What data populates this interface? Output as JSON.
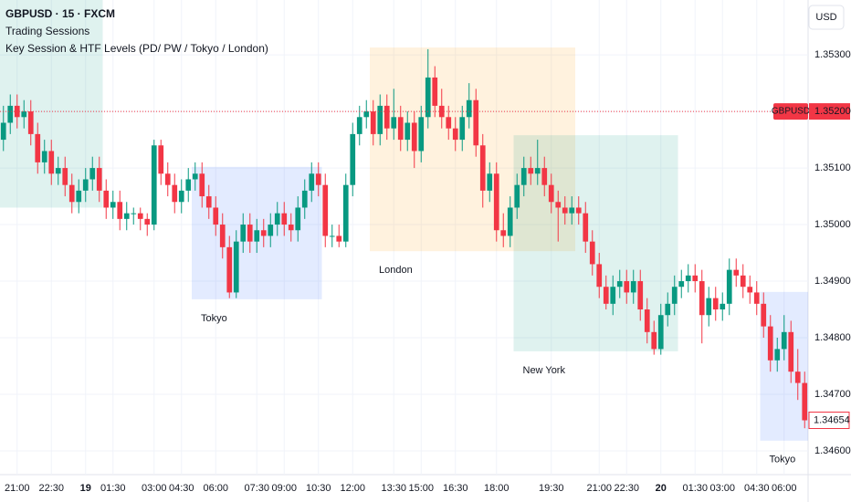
{
  "header": {
    "symbol": "GBPUSD · 15 · FXCM",
    "indicator": "Trading Sessions",
    "indicator2": "Key Session & HTF Levels (PD/ PW / Tokyo / London)",
    "currency": "USD"
  },
  "chart_data": {
    "type": "candlestick",
    "up_color": "#089981",
    "down_color": "#f23645",
    "grid": true,
    "ylim": [
      1.34558,
      1.35397
    ],
    "xlim": [
      -0.5,
      117.5
    ],
    "yticks": [
      {
        "value": 1.353,
        "label": "1.35300"
      },
      {
        "value": 1.352,
        "label": "1.35200"
      },
      {
        "value": 1.351,
        "label": "1.35100"
      },
      {
        "value": 1.35,
        "label": "1.35000"
      },
      {
        "value": 1.349,
        "label": "1.34900"
      },
      {
        "value": 1.348,
        "label": "1.34800"
      },
      {
        "value": 1.347,
        "label": "1.34700"
      },
      {
        "value": 1.346,
        "label": "1.34600"
      }
    ],
    "xticks": [
      {
        "value": 2,
        "label": "21:00"
      },
      {
        "value": 7,
        "label": "22:30"
      },
      {
        "value": 12,
        "label": "19",
        "bold": true
      },
      {
        "value": 16,
        "label": "01:30"
      },
      {
        "value": 22,
        "label": "03:00"
      },
      {
        "value": 26,
        "label": "04:30"
      },
      {
        "value": 31,
        "label": "06:00"
      },
      {
        "value": 37,
        "label": "07:30"
      },
      {
        "value": 41,
        "label": "09:00"
      },
      {
        "value": 46,
        "label": "10:30"
      },
      {
        "value": 51,
        "label": "12:00"
      },
      {
        "value": 57,
        "label": "13:30"
      },
      {
        "value": 61,
        "label": "15:00"
      },
      {
        "value": 66,
        "label": "16:30"
      },
      {
        "value": 72,
        "label": "18:00"
      },
      {
        "value": 80,
        "label": "19:30"
      },
      {
        "value": 87,
        "label": "21:00"
      },
      {
        "value": 91,
        "label": "22:30"
      },
      {
        "value": 96,
        "label": "20",
        "bold": true
      },
      {
        "value": 101,
        "label": "01:30"
      },
      {
        "value": 105,
        "label": "03:00"
      },
      {
        "value": 110,
        "label": "04:30"
      },
      {
        "value": 114,
        "label": "06:00"
      }
    ],
    "price_line": {
      "name": "GBPUSD",
      "value": 1.352,
      "label": "1.35200",
      "color": "#f23645"
    },
    "last_price": {
      "value": 1.34654,
      "color": "#f23645"
    },
    "sessions": [
      {
        "start": 0,
        "end": 14,
        "high": 1.35397,
        "low": 1.3503,
        "color": "#089981"
      },
      {
        "name": "Tokyo",
        "start": 28,
        "end": 46,
        "high": 1.35102,
        "low": 1.34868,
        "color": "#2962ff"
      },
      {
        "name": "London",
        "start": 54,
        "end": 83,
        "high": 1.35313,
        "low": 1.34953,
        "color": "#ff9800"
      },
      {
        "name": "New York",
        "start": 75,
        "end": 98,
        "high": 1.35158,
        "low": 1.34776,
        "color": "#089981"
      },
      {
        "name": "Tokyo",
        "start": 111,
        "end": 117,
        "high": 1.34881,
        "low": 1.34618,
        "color": "#2962ff"
      }
    ],
    "candles": [
      [
        1.3515,
        1.3521,
        1.3513,
        1.3518
      ],
      [
        1.3518,
        1.3523,
        1.3516,
        1.3521
      ],
      [
        1.3521,
        1.3523,
        1.3517,
        1.3519
      ],
      [
        1.3519,
        1.3522,
        1.3517,
        1.352
      ],
      [
        1.352,
        1.3522,
        1.3514,
        1.3516
      ],
      [
        1.3516,
        1.3518,
        1.3509,
        1.3511
      ],
      [
        1.3511,
        1.3515,
        1.3509,
        1.3513
      ],
      [
        1.3513,
        1.3515,
        1.3507,
        1.3509
      ],
      [
        1.3509,
        1.3512,
        1.3507,
        1.351
      ],
      [
        1.351,
        1.3512,
        1.3505,
        1.3507
      ],
      [
        1.3507,
        1.3509,
        1.3502,
        1.3504
      ],
      [
        1.3504,
        1.3508,
        1.3502,
        1.3506
      ],
      [
        1.3506,
        1.351,
        1.3504,
        1.3508
      ],
      [
        1.3508,
        1.3512,
        1.3506,
        1.351
      ],
      [
        1.351,
        1.3512,
        1.3504,
        1.3506
      ],
      [
        1.3506,
        1.3508,
        1.3501,
        1.3503
      ],
      [
        1.3503,
        1.3506,
        1.3501,
        1.3504
      ],
      [
        1.3504,
        1.3506,
        1.3499,
        1.3501
      ],
      [
        1.3501,
        1.3504,
        1.3499,
        1.3502
      ],
      [
        1.3502,
        1.3503,
        1.35,
        1.3502
      ],
      [
        1.3502,
        1.3503,
        1.3499,
        1.3501
      ],
      [
        1.3501,
        1.3502,
        1.3498,
        1.35
      ],
      [
        1.35,
        1.3515,
        1.3499,
        1.3514
      ],
      [
        1.3514,
        1.3515,
        1.3507,
        1.3509
      ],
      [
        1.3509,
        1.3511,
        1.3505,
        1.3507
      ],
      [
        1.3507,
        1.3509,
        1.3502,
        1.3504
      ],
      [
        1.3504,
        1.3508,
        1.3502,
        1.3506
      ],
      [
        1.3506,
        1.351,
        1.3504,
        1.3508
      ],
      [
        1.3508,
        1.3511,
        1.3506,
        1.3509
      ],
      [
        1.3509,
        1.3511,
        1.3503,
        1.3505
      ],
      [
        1.3505,
        1.3507,
        1.3501,
        1.3503
      ],
      [
        1.3503,
        1.3505,
        1.3498,
        1.35
      ],
      [
        1.35,
        1.3502,
        1.3494,
        1.3496
      ],
      [
        1.3496,
        1.3498,
        1.3487,
        1.3488
      ],
      [
        1.3488,
        1.3499,
        1.3487,
        1.3497
      ],
      [
        1.3497,
        1.3502,
        1.3495,
        1.35
      ],
      [
        1.35,
        1.3502,
        1.3495,
        1.3497
      ],
      [
        1.3497,
        1.3501,
        1.3495,
        1.3499
      ],
      [
        1.3499,
        1.3501,
        1.3496,
        1.3498
      ],
      [
        1.3498,
        1.3502,
        1.3496,
        1.35
      ],
      [
        1.35,
        1.3504,
        1.3498,
        1.3502
      ],
      [
        1.3502,
        1.3504,
        1.3498,
        1.35
      ],
      [
        1.35,
        1.3502,
        1.3497,
        1.3499
      ],
      [
        1.3499,
        1.3505,
        1.3497,
        1.3503
      ],
      [
        1.3503,
        1.3508,
        1.3501,
        1.3506
      ],
      [
        1.3506,
        1.3511,
        1.3504,
        1.3509
      ],
      [
        1.3509,
        1.3511,
        1.3505,
        1.3507
      ],
      [
        1.3507,
        1.3509,
        1.3496,
        1.3498
      ],
      [
        1.3498,
        1.35,
        1.3496,
        1.3498
      ],
      [
        1.3498,
        1.35,
        1.3496,
        1.3497
      ],
      [
        1.3497,
        1.3509,
        1.3496,
        1.3507
      ],
      [
        1.3507,
        1.3518,
        1.3505,
        1.3516
      ],
      [
        1.3516,
        1.3521,
        1.3514,
        1.3519
      ],
      [
        1.3519,
        1.3522,
        1.3517,
        1.352
      ],
      [
        1.352,
        1.3522,
        1.3514,
        1.3516
      ],
      [
        1.3516,
        1.3523,
        1.3514,
        1.3521
      ],
      [
        1.3521,
        1.3523,
        1.3515,
        1.3517
      ],
      [
        1.3517,
        1.3524,
        1.3515,
        1.3519
      ],
      [
        1.3519,
        1.3521,
        1.3513,
        1.3515
      ],
      [
        1.3515,
        1.352,
        1.3513,
        1.3518
      ],
      [
        1.3518,
        1.352,
        1.351,
        1.3513
      ],
      [
        1.3513,
        1.3521,
        1.3511,
        1.3519
      ],
      [
        1.3519,
        1.3531,
        1.3517,
        1.3526
      ],
      [
        1.3526,
        1.3528,
        1.3519,
        1.3521
      ],
      [
        1.3521,
        1.3524,
        1.3517,
        1.3519
      ],
      [
        1.3519,
        1.3521,
        1.3515,
        1.3517
      ],
      [
        1.3517,
        1.3519,
        1.3513,
        1.3515
      ],
      [
        1.3515,
        1.3521,
        1.3513,
        1.3519
      ],
      [
        1.3519,
        1.3525,
        1.3517,
        1.3522
      ],
      [
        1.3522,
        1.3524,
        1.3512,
        1.3514
      ],
      [
        1.3514,
        1.3516,
        1.3503,
        1.3506
      ],
      [
        1.3506,
        1.3511,
        1.3504,
        1.3509
      ],
      [
        1.3509,
        1.3511,
        1.3497,
        1.3499
      ],
      [
        1.3499,
        1.3502,
        1.3496,
        1.3498
      ],
      [
        1.3498,
        1.3505,
        1.3496,
        1.3503
      ],
      [
        1.3503,
        1.3509,
        1.3501,
        1.3507
      ],
      [
        1.3507,
        1.3512,
        1.3505,
        1.351
      ],
      [
        1.351,
        1.3512,
        1.3507,
        1.3509
      ],
      [
        1.3509,
        1.3515,
        1.3507,
        1.351
      ],
      [
        1.351,
        1.3512,
        1.3505,
        1.3507
      ],
      [
        1.3507,
        1.3509,
        1.3502,
        1.3504
      ],
      [
        1.3504,
        1.3506,
        1.3497,
        1.3503
      ],
      [
        1.3503,
        1.3505,
        1.35,
        1.3502
      ],
      [
        1.3502,
        1.3505,
        1.35,
        1.3503
      ],
      [
        1.3503,
        1.3505,
        1.35,
        1.3502
      ],
      [
        1.3502,
        1.3504,
        1.3495,
        1.3497
      ],
      [
        1.3497,
        1.3499,
        1.3491,
        1.3493
      ],
      [
        1.3493,
        1.3495,
        1.3487,
        1.3489
      ],
      [
        1.3489,
        1.3491,
        1.3485,
        1.3486
      ],
      [
        1.3486,
        1.3491,
        1.3484,
        1.3489
      ],
      [
        1.3489,
        1.3492,
        1.3487,
        1.349
      ],
      [
        1.349,
        1.3492,
        1.3486,
        1.3488
      ],
      [
        1.3488,
        1.3492,
        1.3486,
        1.349
      ],
      [
        1.349,
        1.3492,
        1.3483,
        1.3485
      ],
      [
        1.3485,
        1.3487,
        1.3479,
        1.3481
      ],
      [
        1.3481,
        1.3483,
        1.3477,
        1.3478
      ],
      [
        1.3478,
        1.3486,
        1.3477,
        1.3484
      ],
      [
        1.3484,
        1.3488,
        1.3482,
        1.3486
      ],
      [
        1.3486,
        1.3491,
        1.3484,
        1.3489
      ],
      [
        1.3489,
        1.3492,
        1.3487,
        1.349
      ],
      [
        1.349,
        1.3493,
        1.3488,
        1.3491
      ],
      [
        1.3491,
        1.3493,
        1.3488,
        1.349
      ],
      [
        1.349,
        1.3492,
        1.3479,
        1.3484
      ],
      [
        1.3484,
        1.3489,
        1.3482,
        1.3487
      ],
      [
        1.3487,
        1.3489,
        1.3483,
        1.3485
      ],
      [
        1.3485,
        1.3488,
        1.3483,
        1.3486
      ],
      [
        1.3486,
        1.3494,
        1.3484,
        1.3492
      ],
      [
        1.3492,
        1.3494,
        1.3489,
        1.3491
      ],
      [
        1.3491,
        1.3493,
        1.3487,
        1.3489
      ],
      [
        1.3489,
        1.3491,
        1.3486,
        1.3488
      ],
      [
        1.3488,
        1.349,
        1.3484,
        1.3486
      ],
      [
        1.3486,
        1.3488,
        1.348,
        1.3482
      ],
      [
        1.3482,
        1.3484,
        1.3474,
        1.3476
      ],
      [
        1.3476,
        1.348,
        1.3474,
        1.3478
      ],
      [
        1.3478,
        1.3484,
        1.3476,
        1.3481
      ],
      [
        1.3481,
        1.3483,
        1.3472,
        1.3474
      ],
      [
        1.3474,
        1.3478,
        1.3469,
        1.3472
      ],
      [
        1.3472,
        1.3474,
        1.3464,
        1.34654
      ]
    ]
  }
}
